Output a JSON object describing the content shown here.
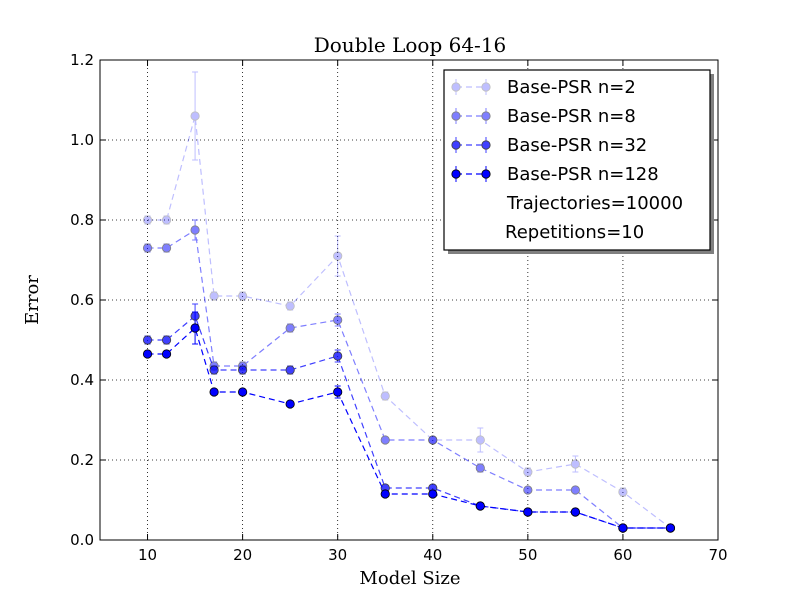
{
  "chart_data": {
    "type": "line",
    "title": "Double Loop 64-16",
    "xlabel": "Model Size",
    "ylabel": "Error",
    "xlim": [
      5,
      70
    ],
    "ylim": [
      0,
      1.2
    ],
    "xticks": [
      "10",
      "20",
      "30",
      "40",
      "50",
      "60",
      "70"
    ],
    "yticks": [
      "0.0",
      "0.2",
      "0.4",
      "0.6",
      "0.8",
      "1.0",
      "1.2"
    ],
    "grid": true,
    "legend_position": "top-right",
    "x": [
      10,
      12,
      15,
      17,
      20,
      25,
      30,
      35,
      40,
      45,
      50,
      55,
      60,
      65
    ],
    "series": [
      {
        "name": "Base-PSR n=2",
        "color": "#0000ff",
        "alpha": 0.25,
        "values": [
          0.8,
          0.8,
          1.06,
          0.61,
          0.61,
          0.585,
          0.71,
          0.36,
          0.25,
          0.25,
          0.17,
          0.19,
          0.12,
          0.03
        ],
        "errors": [
          0.01,
          0.01,
          0.11,
          0.01,
          0.01,
          0.01,
          0.05,
          0.01,
          0.005,
          0.03,
          0.01,
          0.02,
          0.01,
          0.005
        ]
      },
      {
        "name": "Base-PSR n=8",
        "color": "#0000ff",
        "alpha": 0.5,
        "values": [
          0.73,
          0.73,
          0.775,
          0.435,
          0.435,
          0.53,
          0.55,
          0.25,
          0.25,
          0.18,
          0.125,
          0.125,
          0.03,
          0.03
        ],
        "errors": [
          0.01,
          0.01,
          0.025,
          0.01,
          0.01,
          0.01,
          0.015,
          0.005,
          0.005,
          0.01,
          0.005,
          0.005,
          0.005,
          0.005
        ]
      },
      {
        "name": "Base-PSR n=32",
        "color": "#0000ff",
        "alpha": 0.75,
        "values": [
          0.5,
          0.5,
          0.56,
          0.425,
          0.425,
          0.425,
          0.46,
          0.13,
          0.13,
          0.085,
          0.07,
          0.07,
          0.03,
          0.03
        ],
        "errors": [
          0.01,
          0.01,
          0.03,
          0.01,
          0.01,
          0.01,
          0.015,
          0.005,
          0.005,
          0.005,
          0.005,
          0.005,
          0.005,
          0.005
        ]
      },
      {
        "name": "Base-PSR n=128",
        "color": "#0000ff",
        "alpha": 1.0,
        "values": [
          0.465,
          0.465,
          0.53,
          0.37,
          0.37,
          0.34,
          0.37,
          0.115,
          0.115,
          0.085,
          0.07,
          0.07,
          0.03,
          0.03
        ],
        "errors": [
          0.005,
          0.005,
          0.04,
          0.005,
          0.005,
          0.005,
          0.015,
          0.005,
          0.005,
          0.005,
          0.005,
          0.005,
          0.005,
          0.005
        ]
      }
    ],
    "legend_extra": [
      "Trajectories=10000",
      "Repetitions=10"
    ]
  }
}
